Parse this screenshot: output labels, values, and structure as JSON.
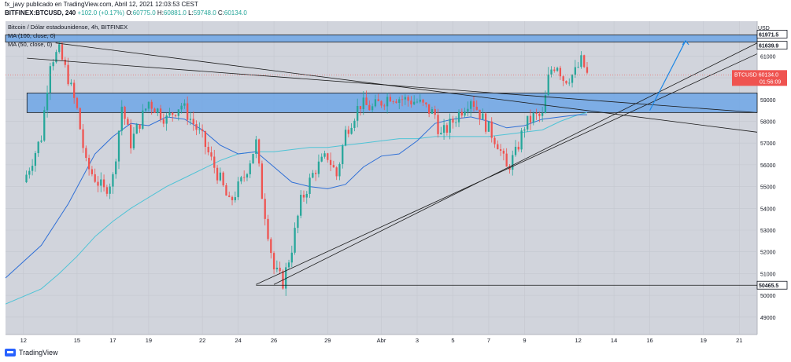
{
  "header": {
    "publisher_line": "fx_javy publicado en TradingView.com, Abril 12, 2021 12:03:53 CEST",
    "symbol": "BITFINEX:BTCUSD, 240",
    "change": "+102.0 (+0.17%)",
    "o_label": "O:",
    "o_value": "60775.0",
    "h_label": "H:",
    "h_value": "60881.0",
    "l_label": "L:",
    "l_value": "59748.0",
    "c_label": "C:",
    "c_value": "60134.0"
  },
  "legend": {
    "title": "Bitcoin / Dólar estadounidense, 4h, BITFINEX",
    "ma100": "MA (100, close, 0)",
    "ma50": "MA (50, close, 0)"
  },
  "footer": {
    "brand": "TradingView"
  },
  "colors": {
    "background": "#d1d4dc",
    "up": "#26a69a",
    "down": "#ef5350",
    "ma100": "#4fc3d6",
    "ma50": "#2f6fd6",
    "zone": "#6ea6e6",
    "arrow": "#1e88e5"
  },
  "chart_data": {
    "type": "candlestick",
    "currency": "USD",
    "ylim": [
      48200,
      62600
    ],
    "y_ticks": [
      49000,
      50000,
      51000,
      52000,
      53000,
      54000,
      55000,
      56000,
      57000,
      58000,
      59000,
      60000,
      61000
    ],
    "x_tick_labels": [
      {
        "label": "12",
        "day": 0
      },
      {
        "label": "15",
        "day": 3
      },
      {
        "label": "17",
        "day": 5
      },
      {
        "label": "19",
        "day": 7
      },
      {
        "label": "22",
        "day": 10
      },
      {
        "label": "24",
        "day": 12
      },
      {
        "label": "26",
        "day": 14
      },
      {
        "label": "29",
        "day": 17
      },
      {
        "label": "Abr",
        "day": 20
      },
      {
        "label": "3",
        "day": 22
      },
      {
        "label": "5",
        "day": 24
      },
      {
        "label": "7",
        "day": 26
      },
      {
        "label": "9",
        "day": 28
      },
      {
        "label": "12",
        "day": 31
      },
      {
        "label": "14",
        "day": 33
      },
      {
        "label": "16",
        "day": 35
      },
      {
        "label": "19",
        "day": 38
      },
      {
        "label": "21",
        "day": 40
      }
    ],
    "x_range_days": [
      -1,
      41
    ],
    "anchors": [
      [
        0,
        55200
      ],
      [
        1,
        57300
      ],
      [
        1.5,
        60800
      ],
      [
        2,
        61200
      ],
      [
        2.5,
        60000
      ],
      [
        3,
        58500
      ],
      [
        3.5,
        56000
      ],
      [
        4.5,
        54800
      ],
      [
        5,
        55400
      ],
      [
        5.5,
        58700
      ],
      [
        6,
        57000
      ],
      [
        7,
        58900
      ],
      [
        8,
        58100
      ],
      [
        8.8,
        58800
      ],
      [
        9.5,
        57900
      ],
      [
        10,
        57200
      ],
      [
        10.5,
        56200
      ],
      [
        11,
        55300
      ],
      [
        11.5,
        54200
      ],
      [
        12.3,
        55400
      ],
      [
        13,
        57000
      ],
      [
        13.3,
        54800
      ],
      [
        14,
        51200
      ],
      [
        14.5,
        50600
      ],
      [
        15,
        52200
      ],
      [
        15.5,
        54300
      ],
      [
        16.3,
        55800
      ],
      [
        17,
        56400
      ],
      [
        17.5,
        55500
      ],
      [
        18,
        57500
      ],
      [
        18.8,
        58800
      ],
      [
        19.5,
        58600
      ],
      [
        20.5,
        59200
      ],
      [
        21.3,
        59000
      ],
      [
        22,
        58900
      ],
      [
        23,
        58300
      ],
      [
        23.3,
        57300
      ],
      [
        24,
        58000
      ],
      [
        25,
        59100
      ],
      [
        25.8,
        57900
      ],
      [
        26.5,
        57000
      ],
      [
        27,
        55800
      ],
      [
        27.5,
        56500
      ],
      [
        28,
        57800
      ],
      [
        28.5,
        58200
      ],
      [
        29,
        58200
      ],
      [
        29.4,
        60300
      ],
      [
        29.8,
        60700
      ],
      [
        30.2,
        59900
      ],
      [
        30.8,
        60200
      ],
      [
        31.2,
        60800
      ],
      [
        31.5,
        60134
      ]
    ],
    "ma50_points": [
      [
        -1,
        50800
      ],
      [
        1,
        52300
      ],
      [
        2.5,
        54200
      ],
      [
        4,
        56500
      ],
      [
        5,
        57300
      ],
      [
        6,
        57900
      ],
      [
        7,
        57800
      ],
      [
        8,
        58200
      ],
      [
        9,
        58100
      ],
      [
        10,
        57600
      ],
      [
        11,
        56900
      ],
      [
        12,
        56500
      ],
      [
        13,
        56600
      ],
      [
        14,
        55900
      ],
      [
        15,
        55200
      ],
      [
        16,
        55000
      ],
      [
        17,
        54900
      ],
      [
        18,
        55100
      ],
      [
        19,
        55900
      ],
      [
        20,
        56400
      ],
      [
        21,
        56500
      ],
      [
        22,
        57100
      ],
      [
        23,
        57900
      ],
      [
        24,
        58100
      ],
      [
        25,
        58200
      ],
      [
        26,
        58000
      ],
      [
        27,
        57700
      ],
      [
        28,
        57800
      ],
      [
        29,
        58100
      ],
      [
        30,
        58200
      ],
      [
        31,
        58300
      ],
      [
        31.5,
        58300
      ]
    ],
    "ma100_points": [
      [
        -1,
        49600
      ],
      [
        1,
        50300
      ],
      [
        2,
        51000
      ],
      [
        3,
        51800
      ],
      [
        4,
        52700
      ],
      [
        5,
        53400
      ],
      [
        6,
        54000
      ],
      [
        7,
        54500
      ],
      [
        8,
        55000
      ],
      [
        9,
        55400
      ],
      [
        10,
        55800
      ],
      [
        11,
        56200
      ],
      [
        12,
        56500
      ],
      [
        13,
        56600
      ],
      [
        14,
        56600
      ],
      [
        15,
        56700
      ],
      [
        16,
        56800
      ],
      [
        17,
        56800
      ],
      [
        18,
        56900
      ],
      [
        19,
        57000
      ],
      [
        20,
        57100
      ],
      [
        21,
        57200
      ],
      [
        22,
        57200
      ],
      [
        23,
        57300
      ],
      [
        24,
        57300
      ],
      [
        25,
        57300
      ],
      [
        26,
        57300
      ],
      [
        27,
        57400
      ],
      [
        28,
        57500
      ],
      [
        29,
        57600
      ],
      [
        30,
        58000
      ],
      [
        31,
        58300
      ],
      [
        31.5,
        58400
      ]
    ],
    "price_labels": [
      {
        "value": 61971.5,
        "text": "61971.5"
      },
      {
        "value": 61639.9,
        "text": "61639.9"
      },
      {
        "value": 60134.0,
        "text": "BTCUSD  60134.0",
        "countdown": "01:56:09"
      },
      {
        "value": 50465.5,
        "text": "50465.5"
      }
    ],
    "zones": [
      {
        "y1": 61971.5,
        "y2": 61639.9,
        "x_from": -1
      },
      {
        "y1": 59300,
        "y2": 58400,
        "x_from": 0.2
      }
    ],
    "trendlines": [
      [
        1.8,
        61600,
        41,
        57500
      ],
      [
        0.2,
        60900,
        41,
        58400
      ],
      [
        13,
        50500,
        41,
        61100
      ],
      [
        14,
        50500,
        41,
        61600
      ]
    ],
    "support_line": {
      "x_from": 13,
      "x_to": 41,
      "value": 50465.5
    },
    "arrow": {
      "from": [
        35,
        58500
      ],
      "to": [
        37,
        61700
      ]
    }
  }
}
